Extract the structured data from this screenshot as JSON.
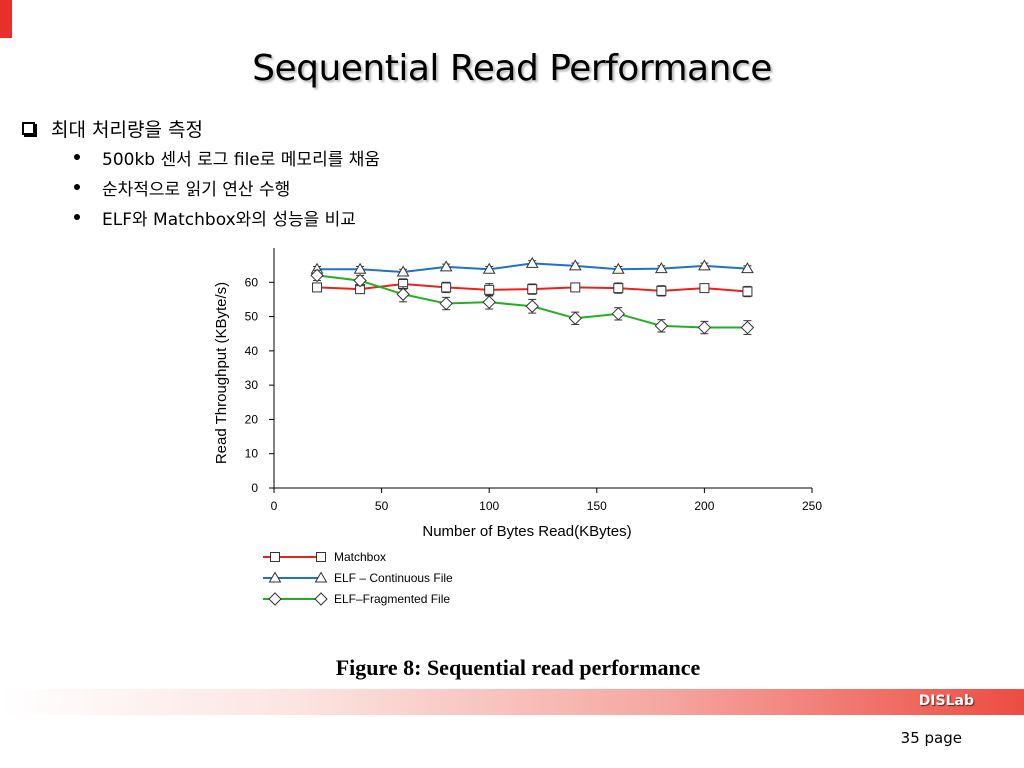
{
  "slide": {
    "title": "Sequential Read Performance",
    "bullets": [
      {
        "text": "최대 처리량을 측정",
        "sub": [
          "500kb 센서 로그 file로 메모리를 채움",
          "순차적으로 읽기 연산 수행",
          "ELF와 Matchbox와의 성능을 비교"
        ]
      }
    ],
    "figure_caption": "Figure 8:  Sequential read performance",
    "footer_lab": "DISLab",
    "page_number": "35 page"
  },
  "chart_data": {
    "type": "line",
    "title": "",
    "xlabel": "Number of Bytes Read(KBytes)",
    "ylabel": "Read Throughput (KByte/s)",
    "xlim": [
      0,
      250
    ],
    "ylim": [
      0,
      70
    ],
    "xticks": [
      0,
      50,
      100,
      150,
      200,
      250
    ],
    "yticks": [
      0,
      10,
      20,
      30,
      40,
      50,
      60
    ],
    "grid": false,
    "legend_position": "bottom-left",
    "x": [
      20,
      40,
      60,
      80,
      100,
      120,
      140,
      160,
      180,
      200,
      220
    ],
    "series": [
      {
        "name": "Matchbox",
        "color": "#e8231c",
        "marker": "square",
        "values": [
          58.5,
          58.0,
          59.5,
          58.5,
          57.8,
          58.0,
          58.5,
          58.3,
          57.5,
          58.3,
          57.3
        ],
        "errors": [
          1.0,
          1.0,
          1.5,
          1.5,
          1.8,
          1.5,
          1.0,
          1.5,
          1.5,
          1.0,
          1.5
        ]
      },
      {
        "name": "ELF – Continuous File",
        "color": "#1e72c8",
        "marker": "triangle",
        "values": [
          63.8,
          63.8,
          63.0,
          64.5,
          63.8,
          65.5,
          64.8,
          63.8,
          64.0,
          64.8,
          64.0
        ],
        "errors": [
          0.8,
          0.8,
          0.8,
          0.8,
          0.8,
          0.8,
          0.8,
          0.8,
          0.8,
          0.8,
          0.8
        ]
      },
      {
        "name": "ELF–Fragmented File",
        "color": "#22b022",
        "marker": "diamond",
        "values": [
          62.0,
          60.5,
          56.5,
          53.8,
          54.2,
          53.0,
          49.5,
          50.8,
          47.3,
          46.8,
          46.8
        ],
        "errors": [
          1.5,
          1.5,
          2.2,
          1.8,
          2.0,
          2.0,
          1.8,
          1.8,
          1.8,
          1.8,
          2.0
        ]
      }
    ]
  }
}
